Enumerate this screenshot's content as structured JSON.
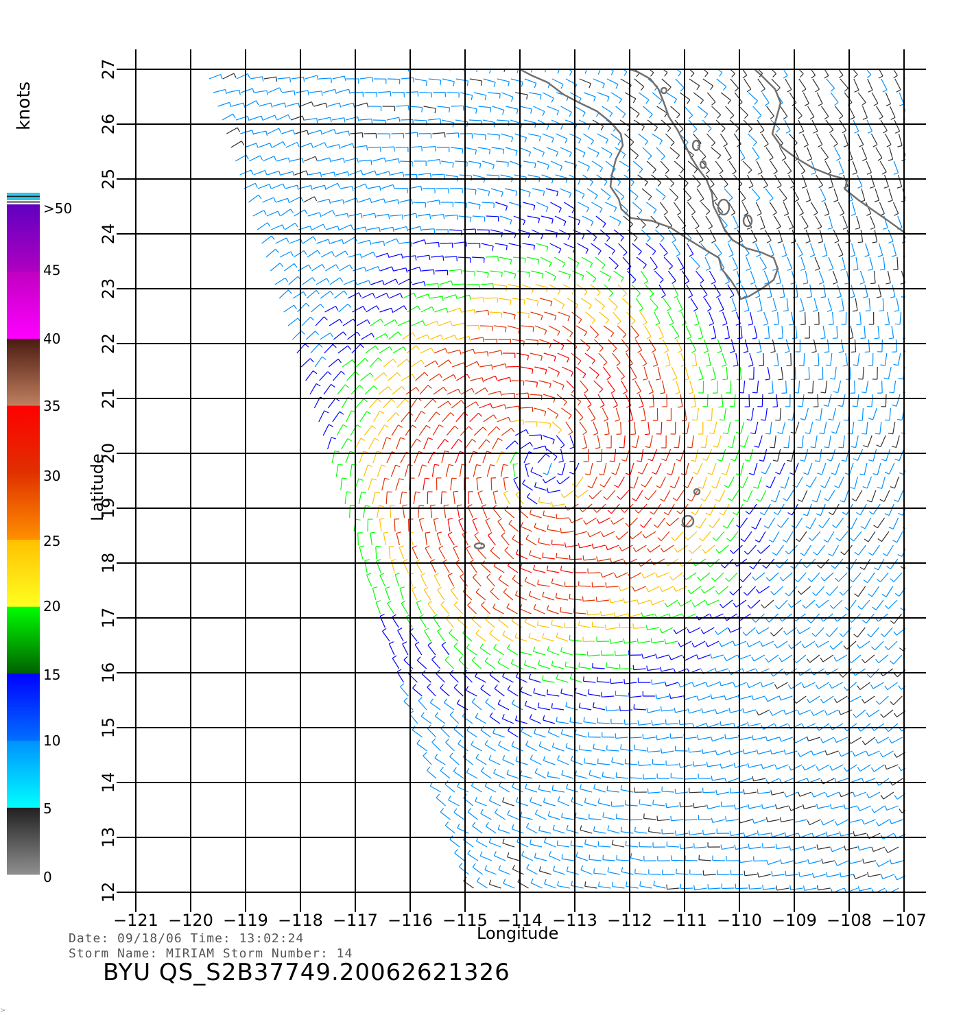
{
  "map": {
    "x_axis": {
      "label": "Longitude",
      "ticks": [
        -121,
        -120,
        -119,
        -118,
        -117,
        -116,
        -115,
        -114,
        -113,
        -112,
        -111,
        -110,
        -109,
        -108,
        -107
      ],
      "tick_labels": [
        "−121",
        "−120",
        "−119",
        "−118",
        "−117",
        "−116",
        "−115",
        "−114",
        "−113",
        "−112",
        "−111",
        "−110",
        "−109",
        "−108",
        "−107"
      ],
      "range": [
        -121,
        -106.6
      ]
    },
    "y_axis": {
      "label": "Latitude",
      "ticks": [
        12,
        13,
        14,
        15,
        16,
        17,
        18,
        19,
        20,
        21,
        22,
        23,
        24,
        25,
        26,
        27
      ],
      "tick_labels": [
        "12",
        "13",
        "14",
        "15",
        "16",
        "17",
        "18",
        "19",
        "20",
        "21",
        "22",
        "23",
        "24",
        "25",
        "26",
        "27"
      ],
      "range": [
        12,
        27
      ]
    },
    "grid": true,
    "storm_center": {
      "lon": -113.6,
      "lat": 19.8
    },
    "wind_field": "cyclonic vector field of wind barbs colored by speed"
  },
  "colorbar": {
    "title": "knots",
    "labels": [
      ">50",
      "45",
      "40",
      "35",
      "30",
      "25",
      "20",
      "15",
      "10",
      "5",
      "0"
    ],
    "bands": [
      {
        "from": 0,
        "to": 5,
        "top_color": "#202020",
        "bottom_color": "#909090"
      },
      {
        "from": 5,
        "to": 10,
        "top_color": "#0090ff",
        "bottom_color": "#00ffff"
      },
      {
        "from": 10,
        "to": 15,
        "top_color": "#0000ff",
        "bottom_color": "#0070ff"
      },
      {
        "from": 15,
        "to": 20,
        "top_color": "#00ff00",
        "bottom_color": "#006000"
      },
      {
        "from": 20,
        "to": 25,
        "top_color": "#ffc000",
        "bottom_color": "#ffff20"
      },
      {
        "from": 25,
        "to": 30,
        "top_color": "#e03000",
        "bottom_color": "#ff9000"
      },
      {
        "from": 30,
        "to": 35,
        "top_color": "#ff0000",
        "bottom_color": "#e03000"
      },
      {
        "from": 35,
        "to": 40,
        "top_color": "#4a1a10",
        "bottom_color": "#c08060"
      },
      {
        "from": 40,
        "to": 45,
        "top_color": "#c000c0",
        "bottom_color": "#ff00ff"
      },
      {
        "from": 45,
        "to": 50,
        "top_color": "#6000c0",
        "bottom_color": "#b000c0"
      }
    ]
  },
  "metadata": {
    "date_line": "Date: 09/18/06   Time: 13:02:24",
    "storm_line": "Storm  Name: MIRIAM   Storm  Number: 14",
    "file_id": "BYU  QS_S2B37749.20062621326"
  },
  "corner_mark": ">"
}
